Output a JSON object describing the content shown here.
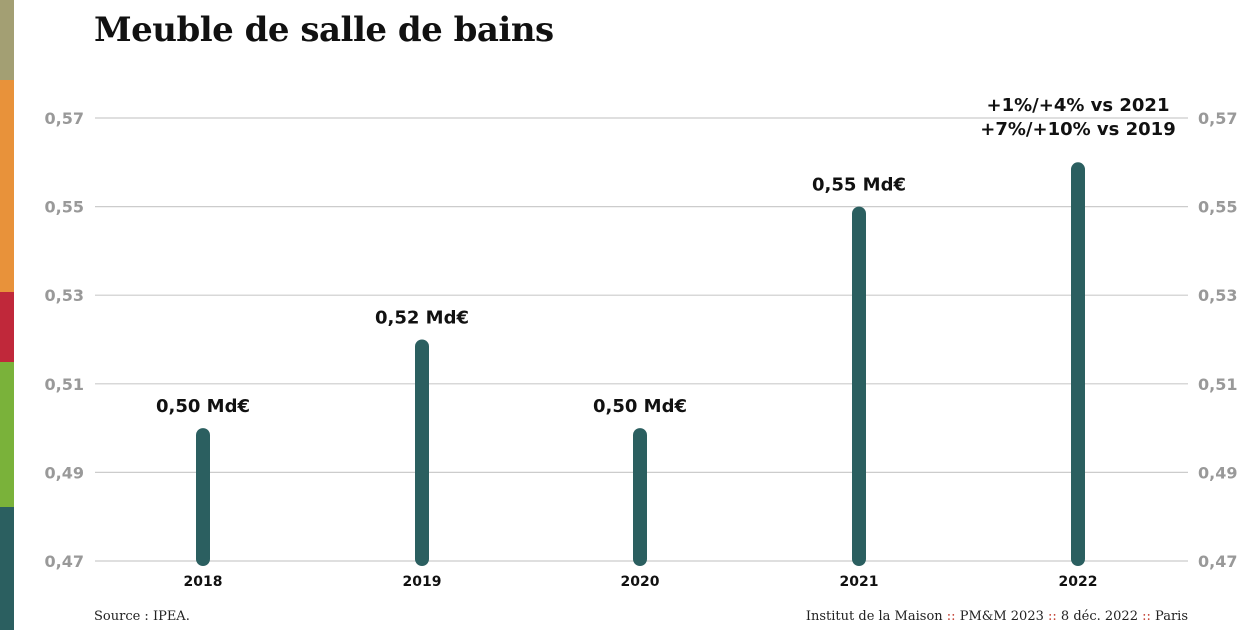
{
  "title": "Meuble de salle de bains",
  "colors": {
    "bar": "#2b5f60",
    "grid": "#cccccc",
    "tick_text": "#999999",
    "strip": [
      "#a39f73",
      "#e8923a",
      "#c0283a",
      "#7ab23a",
      "#2b5f60"
    ]
  },
  "chart_data": {
    "type": "bar",
    "title": "Meuble de salle de bains",
    "categories": [
      "2018",
      "2019",
      "2020",
      "2021",
      "2022"
    ],
    "values": [
      0.5,
      0.52,
      0.5,
      0.55,
      0.56
    ],
    "data_labels": [
      "0,50 Md€",
      "0,52 Md€",
      "0,50 Md€",
      "0,55 Md€",
      ""
    ],
    "annotation": [
      "+1%/+4% vs 2021",
      "+7%/+10% vs 2019"
    ],
    "yticks": [
      "0,47",
      "0,49",
      "0,51",
      "0,53",
      "0,55",
      "0,57"
    ],
    "ytick_values": [
      0.47,
      0.49,
      0.51,
      0.53,
      0.55,
      0.57
    ],
    "ylim": [
      0.47,
      0.57
    ],
    "grid": true,
    "y_axis_sides": "both"
  },
  "footer": {
    "source": "Source : IPEA.",
    "right_parts": [
      "Institut de la Maison",
      "PM&M 2023",
      "8 déc. 2022",
      "Paris"
    ],
    "separator": "::"
  }
}
